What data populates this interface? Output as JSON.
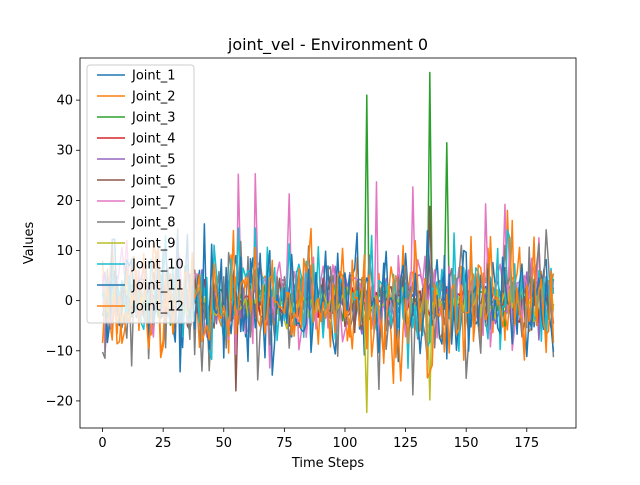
{
  "chart_data": {
    "type": "line",
    "title": "joint_vel - Environment 0",
    "xlabel": "Time Steps",
    "ylabel": "Values",
    "xlim": [
      -9.3,
      195.3
    ],
    "ylim": [
      -25.4,
      48.4
    ],
    "xticks": [
      0,
      25,
      50,
      75,
      100,
      125,
      150,
      175
    ],
    "yticks": [
      -20,
      -10,
      0,
      10,
      20,
      30,
      40
    ],
    "ytick_labels": [
      "−20",
      "−10",
      "0",
      "10",
      "20",
      "30",
      "40"
    ],
    "grid": false,
    "legend": {
      "position": "upper-left"
    },
    "n_points": 187,
    "series": [
      {
        "name": "Joint_1",
        "color": "#1f77b4",
        "amplitude": 4.0,
        "spikes": []
      },
      {
        "name": "Joint_2",
        "color": "#ff7f0e",
        "amplitude": 5.5,
        "spikes": [
          [
            120,
            -16.5
          ],
          [
            167,
            18.0
          ]
        ]
      },
      {
        "name": "Joint_3",
        "color": "#2ca02c",
        "amplitude": 2.0,
        "spikes": [
          [
            109,
            41.0
          ],
          [
            135,
            45.5
          ],
          [
            142,
            31.5
          ]
        ]
      },
      {
        "name": "Joint_4",
        "color": "#d62728",
        "amplitude": 2.0,
        "spikes": []
      },
      {
        "name": "Joint_5",
        "color": "#9467bd",
        "amplitude": 3.0,
        "spikes": []
      },
      {
        "name": "Joint_6",
        "color": "#8c564b",
        "amplitude": 3.0,
        "spikes": [
          [
            55,
            -18.0
          ],
          [
            135,
            18.8
          ]
        ]
      },
      {
        "name": "Joint_7",
        "color": "#e377c2",
        "amplitude": 5.0,
        "spikes": [
          [
            56,
            25.2
          ],
          [
            63,
            25.3
          ],
          [
            77,
            21.3
          ],
          [
            113,
            23.7
          ],
          [
            128,
            22.7
          ],
          [
            158,
            19.3
          ],
          [
            166,
            19.2
          ]
        ]
      },
      {
        "name": "Joint_8",
        "color": "#7f7f7f",
        "amplitude": 5.5,
        "spikes": [
          [
            12,
            -13.0
          ],
          [
            64,
            -15.8
          ],
          [
            114,
            -17.7
          ],
          [
            128,
            -18.8
          ],
          [
            150,
            -15.5
          ]
        ]
      },
      {
        "name": "Joint_9",
        "color": "#bcbd22",
        "amplitude": 2.0,
        "spikes": [
          [
            109,
            -22.3
          ],
          [
            135,
            -19.8
          ]
        ]
      },
      {
        "name": "Joint_10",
        "color": "#17becf",
        "amplitude": 5.0,
        "spikes": [
          [
            56,
            14.5
          ],
          [
            63,
            14.5
          ],
          [
            111,
            13.0
          ],
          [
            145,
            13.5
          ],
          [
            168,
            12.5
          ]
        ]
      },
      {
        "name": "Joint_11",
        "color": "#1f77b4",
        "amplitude": 6.0,
        "spikes": [
          [
            32,
            -14.2
          ],
          [
            186,
            -10.2
          ]
        ]
      },
      {
        "name": "Joint_12",
        "color": "#ff7f0e",
        "amplitude": 6.0,
        "spikes": [
          [
            123,
            -16.0
          ],
          [
            134,
            -15.4
          ],
          [
            169,
            16.0
          ]
        ]
      }
    ]
  }
}
